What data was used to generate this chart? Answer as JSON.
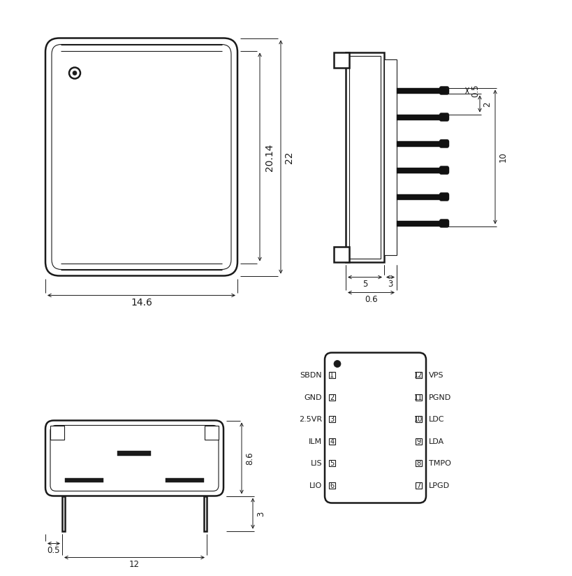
{
  "bg_color": "#ffffff",
  "line_color": "#1a1a1a",
  "lw_main": 1.8,
  "lw_thin": 0.8,
  "lw_dim": 0.7,
  "pin_labels_left": [
    "SBDN",
    "GND",
    "2.5VR",
    "ILM",
    "LIS",
    "LIO"
  ],
  "pin_labels_right": [
    "VPS",
    "PGND",
    "LDC",
    "LDA",
    "TMPO",
    "LPGD"
  ],
  "pin_nums_left": [
    "1",
    "2",
    "3",
    "4",
    "5",
    "6"
  ],
  "pin_nums_right": [
    "12",
    "11",
    "10",
    "9",
    "8",
    "7"
  ],
  "dim_14p6": "14.6",
  "dim_22": "22",
  "dim_20p14": "20.14",
  "dim_0p5": "0.5",
  "dim_10": "10",
  "dim_2": "2",
  "dim_5": "5",
  "dim_3": "3",
  "dim_0p6": "0.6",
  "dim_8p6": "8.6",
  "dim_3b": "3",
  "dim_0p5b": "0.5",
  "dim_12": "12"
}
